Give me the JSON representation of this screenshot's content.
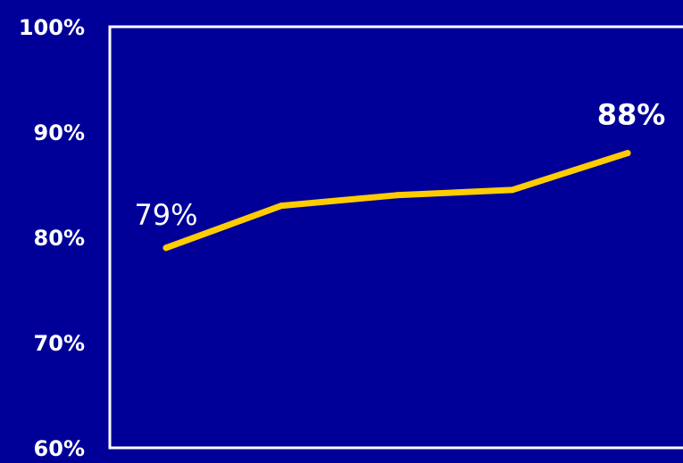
{
  "chart_data": {
    "type": "line",
    "x": [
      1,
      2,
      3,
      4,
      5
    ],
    "series": [
      {
        "values": [
          79,
          83,
          84,
          84.5,
          88
        ]
      }
    ],
    "yticks": [
      "60%",
      "70%",
      "80%",
      "90%",
      "100%"
    ],
    "ylim": [
      60,
      100
    ],
    "data_labels": [
      {
        "index": 0,
        "text": "79%"
      },
      {
        "index": 4,
        "text": "88%"
      }
    ],
    "colors": {
      "background": "#000099",
      "line": "#FFCC00",
      "axis": "#FFFFFF",
      "text": "#FFFFFF"
    },
    "grid": false
  }
}
